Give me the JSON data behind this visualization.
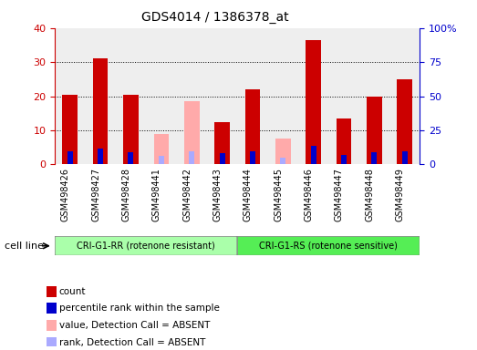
{
  "title": "GDS4014 / 1386378_at",
  "samples": [
    "GSM498426",
    "GSM498427",
    "GSM498428",
    "GSM498441",
    "GSM498442",
    "GSM498443",
    "GSM498444",
    "GSM498445",
    "GSM498446",
    "GSM498447",
    "GSM498448",
    "GSM498449"
  ],
  "count_values": [
    20.5,
    31.0,
    20.5,
    0,
    0,
    12.5,
    22.0,
    0,
    36.5,
    13.5,
    20.0,
    25.0
  ],
  "rank_values": [
    9.5,
    11.5,
    9.0,
    0,
    9.0,
    8.0,
    10.0,
    0,
    13.5,
    7.0,
    9.0,
    10.0
  ],
  "absent_count_values": [
    0,
    0,
    0,
    9.0,
    18.5,
    0,
    0,
    7.5,
    0,
    0,
    0,
    0
  ],
  "absent_rank_values": [
    0,
    0,
    0,
    6.0,
    9.5,
    0,
    0,
    5.0,
    0,
    0,
    0,
    0
  ],
  "group1_label": "CRI-G1-RR (rotenone resistant)",
  "group2_label": "CRI-G1-RS (rotenone sensitive)",
  "group1_color": "#aaffaa",
  "group2_color": "#55ee55",
  "cell_line_label": "cell line",
  "ylim_left": [
    0,
    40
  ],
  "ylim_right": [
    0,
    100
  ],
  "yticks_left": [
    0,
    10,
    20,
    30,
    40
  ],
  "yticks_right": [
    0,
    25,
    50,
    75,
    100
  ],
  "yticklabels_right": [
    "0",
    "25",
    "50",
    "75",
    "100%"
  ],
  "color_count": "#cc0000",
  "color_rank": "#0000cc",
  "color_absent_count": "#ffaaaa",
  "color_absent_rank": "#aaaaff",
  "bar_width": 0.5,
  "rank_bar_width": 0.18,
  "background_color": "#ffffff",
  "plot_bg_color": "#eeeeee",
  "legend_items": [
    "count",
    "percentile rank within the sample",
    "value, Detection Call = ABSENT",
    "rank, Detection Call = ABSENT"
  ],
  "legend_colors": [
    "#cc0000",
    "#0000cc",
    "#ffaaaa",
    "#aaaaff"
  ]
}
